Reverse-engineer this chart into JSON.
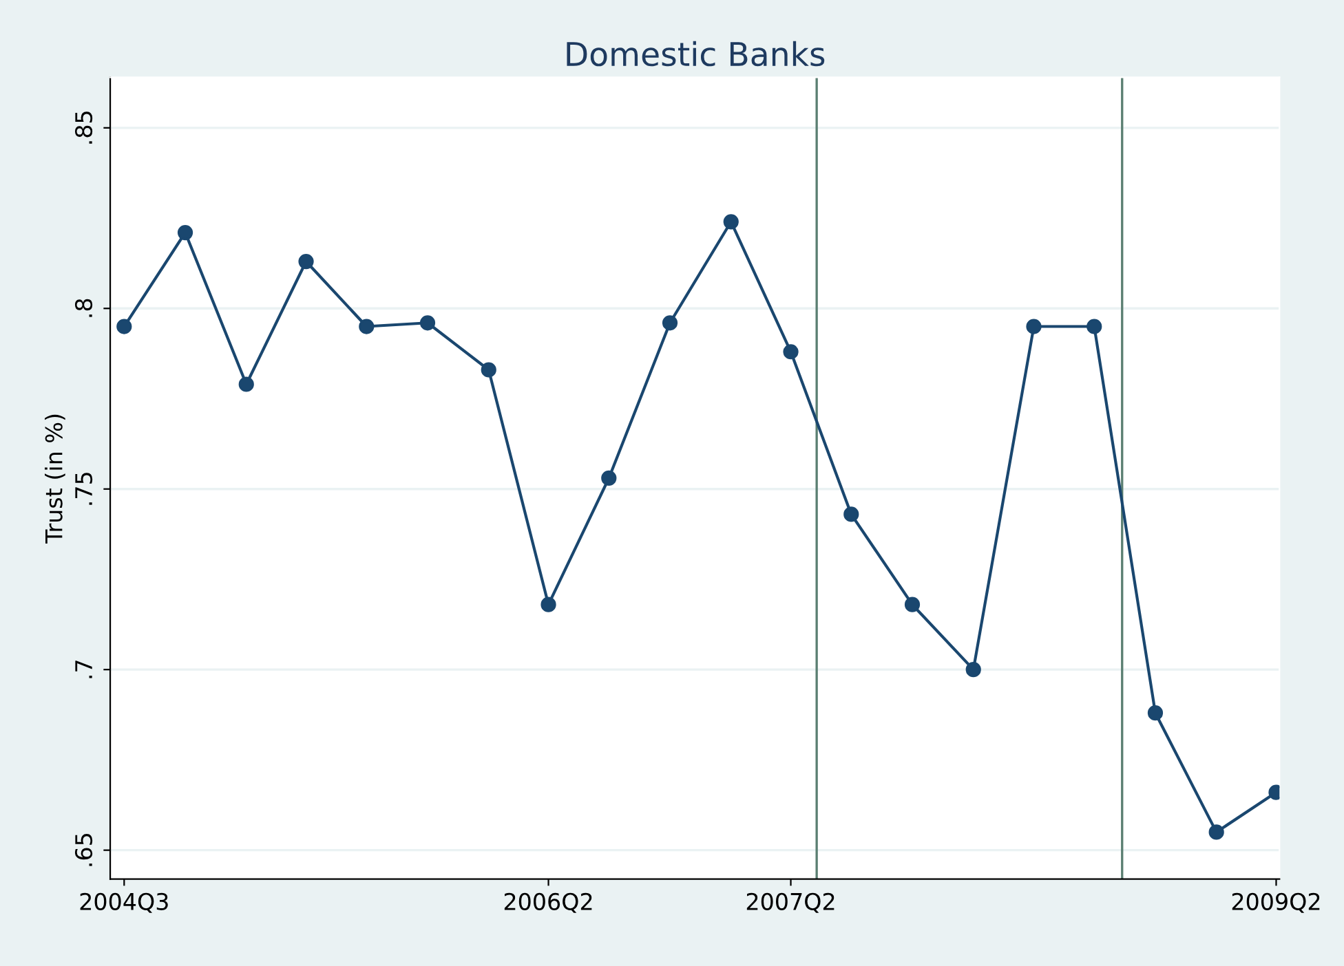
{
  "chart_data": {
    "type": "line",
    "title": "Domestic Banks",
    "ylabel": "Trust (in %)",
    "x": [
      "2004-07",
      "2004-10",
      "2005-01",
      "2005-04",
      "2005-07",
      "2005-10",
      "2006-01",
      "2006-04",
      "2006-07",
      "2006-10",
      "2007-01",
      "2007-04",
      "2007-07",
      "2007-10",
      "2008-01",
      "2008-04",
      "2008-07",
      "2008-10",
      "2009-01",
      "2009-04"
    ],
    "series": [
      {
        "color": "#1a476f",
        "values": [
          0.795,
          0.821,
          0.779,
          0.813,
          0.795,
          0.796,
          0.783,
          0.718,
          0.753,
          0.796,
          0.824,
          0.788,
          0.743,
          0.718,
          0.7,
          0.795,
          0.795,
          0.688,
          0.655,
          0.666
        ]
      }
    ],
    "xlim": [
      "2004-06-10",
      "2009-04-06"
    ],
    "ylim": [
      0.642,
      0.864
    ],
    "xticks": [
      {
        "value": "2004-07",
        "label": "2004Q3"
      },
      {
        "value": "2006-04",
        "label": "2006Q2"
      },
      {
        "value": "2007-04",
        "label": "2007Q2"
      },
      {
        "value": "2009-04",
        "label": "2009Q2"
      }
    ],
    "yticks": [
      {
        "value": 0.65,
        "label": ".65"
      },
      {
        "value": 0.7,
        "label": ".7"
      },
      {
        "value": 0.75,
        "label": ".75"
      },
      {
        "value": 0.8,
        "label": ".8"
      },
      {
        "value": 0.85,
        "label": ".85"
      }
    ],
    "ref_lines": [
      {
        "axis": "x",
        "value": "2007-05-10",
        "color": "#5b7f72"
      },
      {
        "axis": "x",
        "value": "2008-08-12",
        "color": "#5b7f72"
      }
    ],
    "grid": "y",
    "marker": "circle",
    "line_style": "solid"
  }
}
